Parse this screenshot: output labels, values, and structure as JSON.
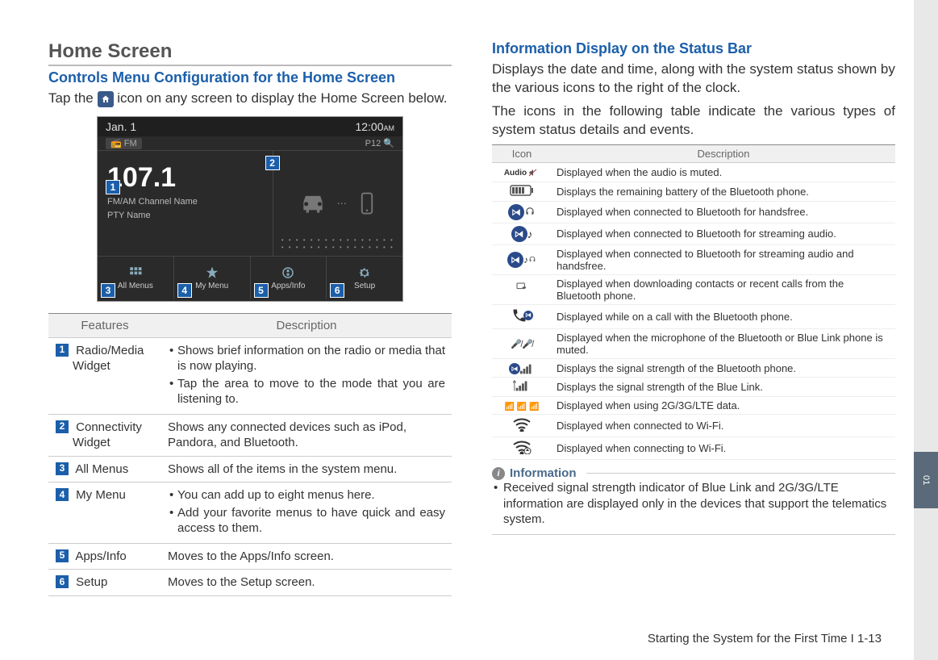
{
  "left": {
    "title": "Home Screen",
    "subhead": "Controls Menu Configuration for the Home Screen",
    "intro_pre": "Tap the ",
    "intro_post": " icon on any screen to display the Home Screen below.",
    "screenshot": {
      "date": "Jan. 1",
      "time": "12:00",
      "ampm": "AM",
      "fm_label": "FM",
      "freq": "107.1",
      "channel_line1": "FM/AM Channel Name",
      "channel_line2": "PTY Name",
      "p_label": "P12",
      "buttons": [
        "All Menus",
        "My Menu",
        "Apps/Info",
        "Setup"
      ]
    },
    "table": {
      "headers": [
        "Features",
        "Description"
      ],
      "rows": [
        {
          "num": "1",
          "feature": "Radio/Media Widget",
          "desc": [
            "Shows brief information on the radio or media that is now playing.",
            "Tap the area to move to the mode that you are listening to."
          ]
        },
        {
          "num": "2",
          "feature": "Connectivity Widget",
          "desc_plain": "Shows any connected devices such as iPod, Pandora, and Bluetooth."
        },
        {
          "num": "3",
          "feature": "All Menus",
          "desc_plain": "Shows all of the items in the system menu."
        },
        {
          "num": "4",
          "feature": "My Menu",
          "desc": [
            "You can add up to eight menus here.",
            "Add your favorite menus to have quick and easy access to them."
          ]
        },
        {
          "num": "5",
          "feature": "Apps/Info",
          "desc_plain": "Moves to the Apps/Info screen."
        },
        {
          "num": "6",
          "feature": "Setup",
          "desc_plain": "Moves to the Setup screen."
        }
      ]
    }
  },
  "right": {
    "subhead": "Information Display on the Status Bar",
    "para1": "Displays the date and time, along with the system status shown by the various icons to the right of the clock.",
    "para2": "The icons in the following table indicate the various types of system status details and events.",
    "table": {
      "headers": [
        "Icon",
        "Description"
      ],
      "rows": [
        {
          "icon": "audio-mute",
          "desc": "Displayed when the audio is muted."
        },
        {
          "icon": "battery",
          "desc": "Displays the remaining battery of the Bluetooth phone."
        },
        {
          "icon": "bt-handsfree",
          "desc": "Displayed when connected to Bluetooth for handsfree."
        },
        {
          "icon": "bt-audio",
          "desc": "Displayed when connected to Bluetooth for streaming audio."
        },
        {
          "icon": "bt-both",
          "desc": "Displayed when connected to Bluetooth for streaming audio and handsfree."
        },
        {
          "icon": "bt-download",
          "desc": "Displayed when downloading contacts or recent calls from the Bluetooth phone."
        },
        {
          "icon": "bt-call",
          "desc": "Displayed while on a call with the Bluetooth phone."
        },
        {
          "icon": "mic-mute",
          "desc": "Displayed when the microphone of the Bluetooth or Blue Link phone is muted."
        },
        {
          "icon": "bt-signal",
          "desc": "Displays the signal strength of the Bluetooth phone."
        },
        {
          "icon": "bl-signal",
          "desc": "Displays the signal strength of the Blue Link."
        },
        {
          "icon": "data",
          "desc": "Displayed when using 2G/3G/LTE data."
        },
        {
          "icon": "wifi-on",
          "desc": "Displayed when connected to Wi-Fi."
        },
        {
          "icon": "wifi-conn",
          "desc": "Displayed when connecting to Wi-Fi."
        }
      ]
    },
    "info_label": "Information",
    "info_bullet": "Received signal strength indicator of Blue Link and 2G/3G/LTE information are displayed only in the devices that support the telematics system."
  },
  "footer": "Starting the System for the First Time I 1-13",
  "sidetab": "01",
  "colors": {
    "heading_blue": "#1b5faa",
    "badge_blue": "#1b5faa",
    "border_gray": "#cccccc"
  }
}
